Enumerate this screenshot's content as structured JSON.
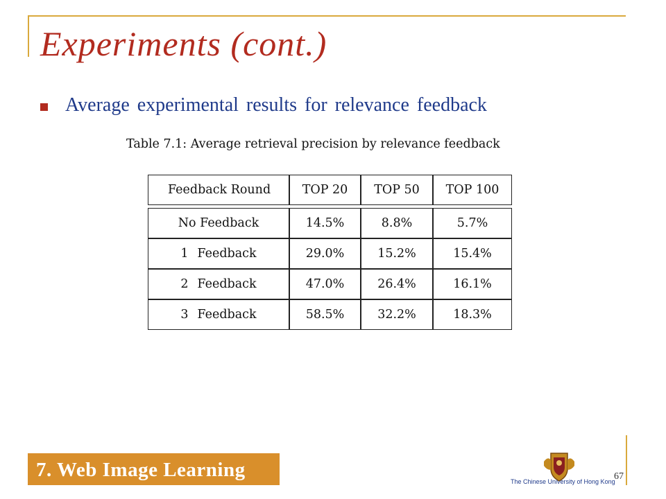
{
  "slide": {
    "title": "Experiments (cont.)",
    "bullet": "Average experimental results for relevance feedback",
    "page_number": "67"
  },
  "table": {
    "caption": "Table 7.1: Average retrieval precision by relevance feedback",
    "headers": [
      "Feedback Round",
      "TOP 20",
      "TOP 50",
      "TOP 100"
    ],
    "rows": [
      {
        "label": "No Feedback",
        "num": "",
        "text": "No Feedback",
        "values": [
          "14.5%",
          "8.8%",
          "5.7%"
        ]
      },
      {
        "label": "1 Feedback",
        "num": "1",
        "text": "Feedback",
        "values": [
          "29.0%",
          "15.2%",
          "15.4%"
        ]
      },
      {
        "label": "2 Feedback",
        "num": "2",
        "text": "Feedback",
        "values": [
          "47.0%",
          "26.4%",
          "16.1%"
        ]
      },
      {
        "label": "3 Feedback",
        "num": "3",
        "text": "Feedback",
        "values": [
          "58.5%",
          "32.2%",
          "18.3%"
        ]
      }
    ]
  },
  "footer": {
    "section": "7. Web Image Learning",
    "university": "The Chinese University of Hong Kong"
  },
  "colors": {
    "title": "#b22b1f",
    "bullet_text": "#1f3a8a",
    "frame": "#d9a93c",
    "footer_box": "#d98f2b"
  }
}
